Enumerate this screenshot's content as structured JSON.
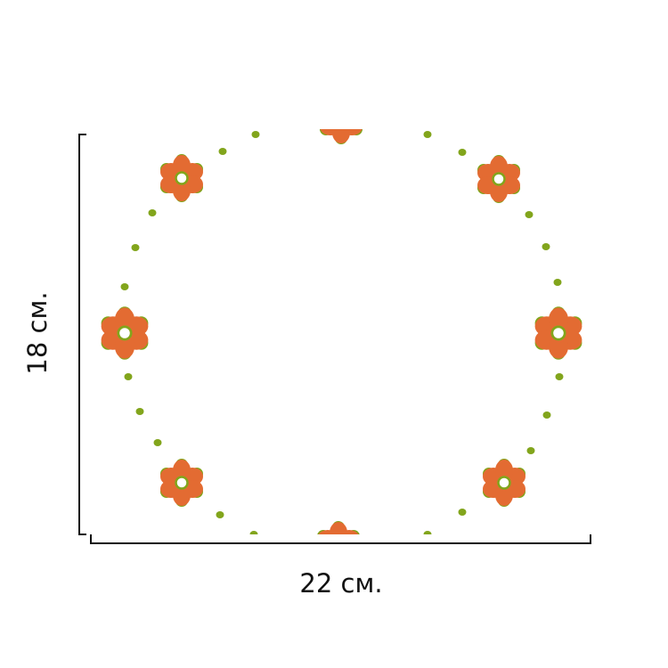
{
  "dimensions": {
    "height_label": "18 см.",
    "width_label": "22 см."
  }
}
